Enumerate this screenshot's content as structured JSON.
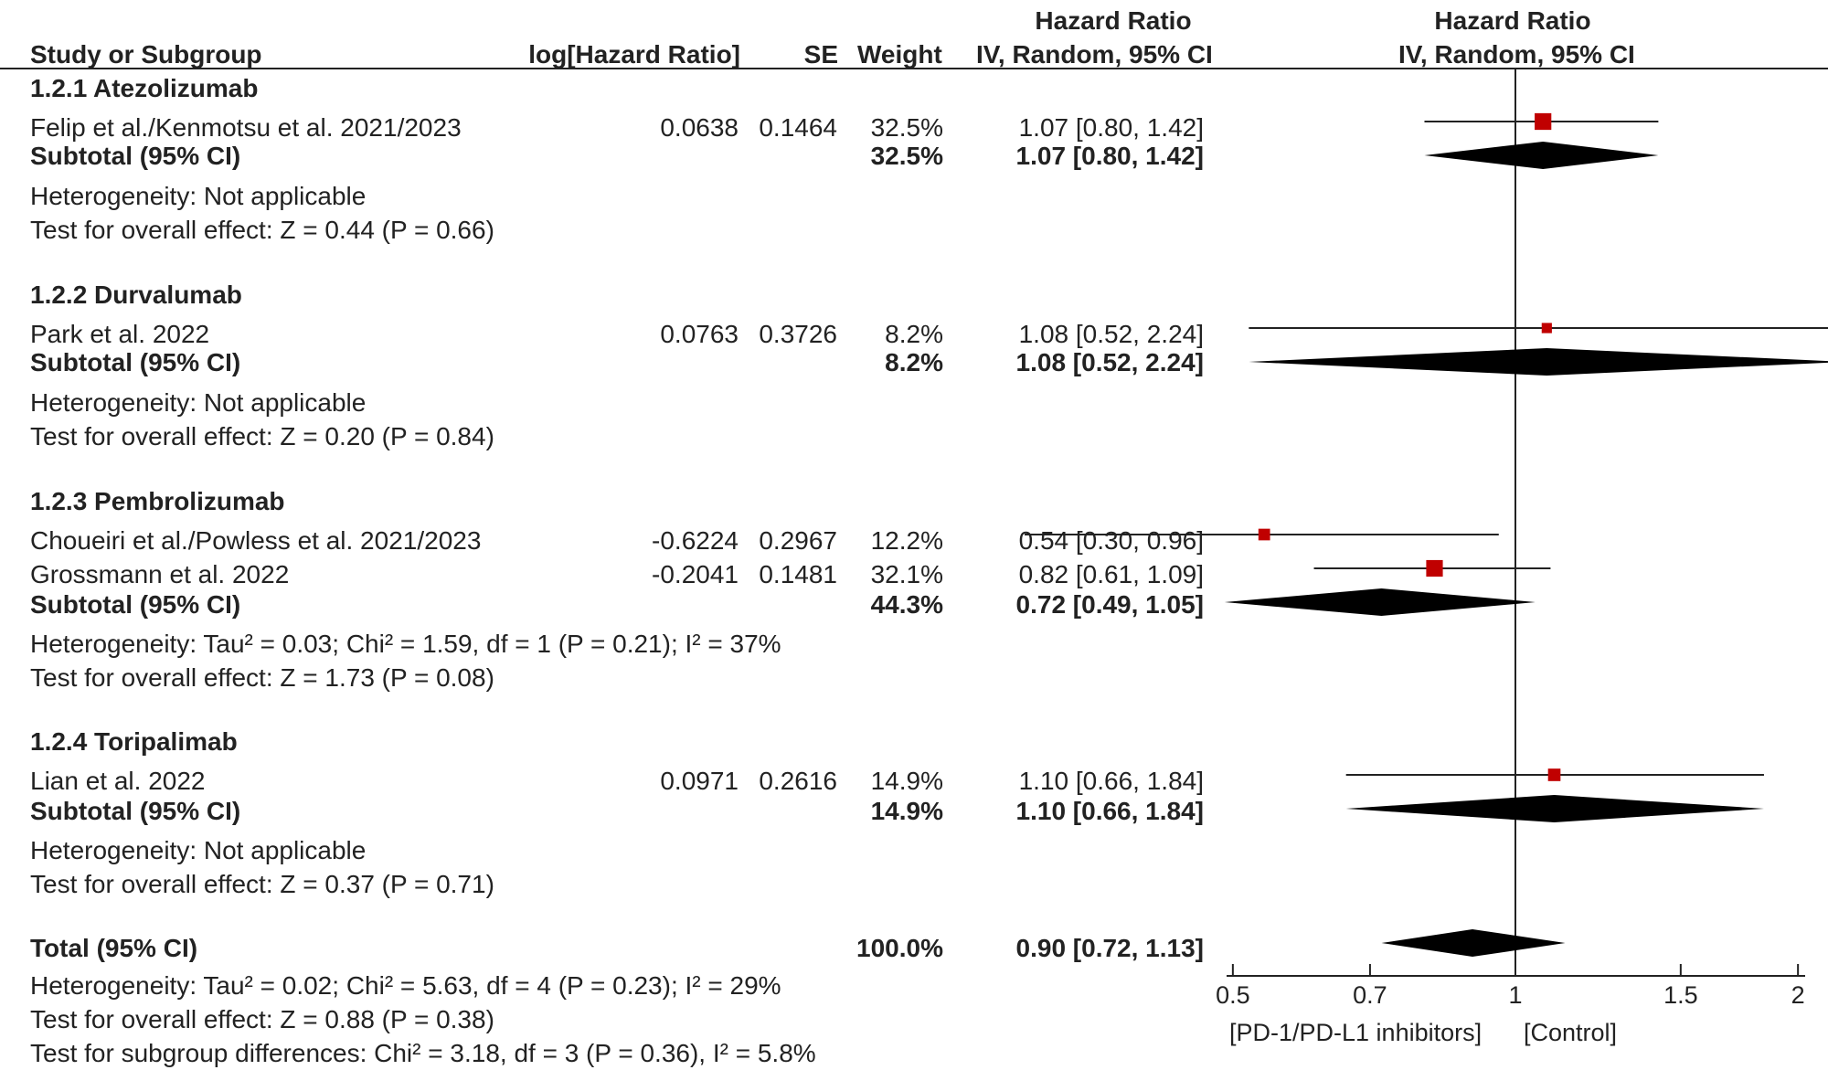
{
  "header": {
    "study": "Study or Subgroup",
    "loghr": "log[Hazard Ratio]",
    "se": "SE",
    "weight": "Weight",
    "hr_title": "Hazard Ratio",
    "hr_method": "IV, Random, 95% CI",
    "plot_title": "Hazard Ratio",
    "plot_method": "IV, Random, 95% CI"
  },
  "groups": [
    {
      "title": "1.2.1 Atezolizumab",
      "studies": [
        {
          "name": "Felip et al./Kenmotsu et al. 2021/2023",
          "loghr": "0.0638",
          "se": "0.1464",
          "weight": "32.5%",
          "ci_text": "1.07 [0.80, 1.42]"
        }
      ],
      "subtotal": {
        "label": "Subtotal (95% CI)",
        "weight": "32.5%",
        "ci_text": "1.07 [0.80, 1.42]"
      },
      "heterogeneity": "Heterogeneity: Not applicable",
      "overall": "Test for overall effect: Z = 0.44 (P = 0.66)"
    },
    {
      "title": "1.2.2 Durvalumab",
      "studies": [
        {
          "name": "Park et al. 2022",
          "loghr": "0.0763",
          "se": "0.3726",
          "weight": "8.2%",
          "ci_text": "1.08 [0.52, 2.24]"
        }
      ],
      "subtotal": {
        "label": "Subtotal (95% CI)",
        "weight": "8.2%",
        "ci_text": "1.08 [0.52, 2.24]"
      },
      "heterogeneity": "Heterogeneity: Not applicable",
      "overall": "Test for overall effect: Z = 0.20 (P = 0.84)"
    },
    {
      "title": "1.2.3 Pembrolizumab",
      "studies": [
        {
          "name": "Choueiri et al./Powless et al. 2021/2023",
          "loghr": "-0.6224",
          "se": "0.2967",
          "weight": "12.2%",
          "ci_text": "0.54 [0.30, 0.96]"
        },
        {
          "name": "Grossmann et al. 2022",
          "loghr": "-0.2041",
          "se": "0.1481",
          "weight": "32.1%",
          "ci_text": "0.82 [0.61, 1.09]"
        }
      ],
      "subtotal": {
        "label": "Subtotal (95% CI)",
        "weight": "44.3%",
        "ci_text": "0.72 [0.49, 1.05]"
      },
      "heterogeneity": "Heterogeneity: Tau² = 0.03; Chi² = 1.59, df = 1 (P = 0.21); I² = 37%",
      "overall": "Test for overall effect: Z = 1.73 (P = 0.08)"
    },
    {
      "title": "1.2.4 Toripalimab",
      "studies": [
        {
          "name": "Lian et al. 2022",
          "loghr": "0.0971",
          "se": "0.2616",
          "weight": "14.9%",
          "ci_text": "1.10 [0.66, 1.84]"
        }
      ],
      "subtotal": {
        "label": "Subtotal (95% CI)",
        "weight": "14.9%",
        "ci_text": "1.10 [0.66, 1.84]"
      },
      "heterogeneity": "Heterogeneity: Not applicable",
      "overall": "Test for overall effect: Z = 0.37 (P = 0.71)"
    }
  ],
  "total": {
    "label": "Total (95% CI)",
    "weight": "100.0%",
    "ci_text": "0.90 [0.72, 1.13]",
    "heterogeneity": "Heterogeneity: Tau² = 0.02; Chi² = 5.63, df = 4 (P = 0.23); I² = 29%",
    "overall": "Test for overall effect: Z = 0.88 (P = 0.38)",
    "subgroup": "Test for subgroup differences: Chi² = 3.18, df = 3 (P = 0.36), I² = 5.8%"
  },
  "axis": {
    "favours_left": "[PD-1/PD-L1 inhibitors]",
    "favours_right": "[Control]"
  },
  "colors": {
    "marker": "#c00000",
    "diamond": "#000000",
    "line": "#222222"
  },
  "chart_data": {
    "type": "scatter",
    "scale": "log",
    "xlim": [
      0.3,
      3.6
    ],
    "ticks": [
      {
        "value": 0.5,
        "label": "0.5"
      },
      {
        "value": 0.7,
        "label": "0.7"
      },
      {
        "value": 1,
        "label": "1"
      },
      {
        "value": 1.5,
        "label": "1.5"
      },
      {
        "value": 2,
        "label": "2"
      }
    ],
    "reference": 1,
    "studies": [
      {
        "name": "Felip et al./Kenmotsu et al. 2021/2023",
        "hr": 1.07,
        "lo": 0.8,
        "hi": 1.42,
        "weight": 32.5
      },
      {
        "name": "Park et al. 2022",
        "hr": 1.08,
        "lo": 0.52,
        "hi": 2.24,
        "weight": 8.2
      },
      {
        "name": "Choueiri et al./Powless et al. 2021/2023",
        "hr": 0.54,
        "lo": 0.3,
        "hi": 0.96,
        "weight": 12.2
      },
      {
        "name": "Grossmann et al. 2022",
        "hr": 0.82,
        "lo": 0.61,
        "hi": 1.09,
        "weight": 32.1
      },
      {
        "name": "Lian et al. 2022",
        "hr": 1.1,
        "lo": 0.66,
        "hi": 1.84,
        "weight": 14.9
      }
    ],
    "diamonds": [
      {
        "name": "Subtotal 1.2.1 Atezolizumab",
        "hr": 1.07,
        "lo": 0.8,
        "hi": 1.42
      },
      {
        "name": "Subtotal 1.2.2 Durvalumab",
        "hr": 1.08,
        "lo": 0.52,
        "hi": 2.24
      },
      {
        "name": "Subtotal 1.2.3 Pembrolizumab",
        "hr": 0.72,
        "lo": 0.49,
        "hi": 1.05
      },
      {
        "name": "Subtotal 1.2.4 Toripalimab",
        "hr": 1.1,
        "lo": 0.66,
        "hi": 1.84
      },
      {
        "name": "Total",
        "hr": 0.9,
        "lo": 0.72,
        "hi": 1.13
      }
    ]
  }
}
